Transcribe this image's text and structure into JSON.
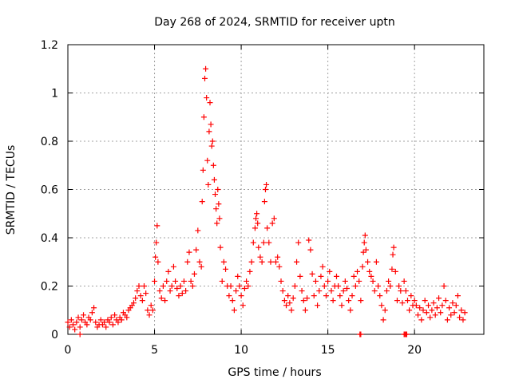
{
  "chart_data": {
    "type": "scatter",
    "title": "Day 268 of 2024, SRMTID for receiver uptn",
    "xlabel": "GPS time / hours",
    "ylabel": "SRMTID / TECUs",
    "xlim": [
      0,
      24
    ],
    "ylim": [
      0,
      1.2
    ],
    "x_ticks": [
      0,
      5,
      10,
      15,
      20
    ],
    "x_tick_labels": [
      "0",
      "5",
      "10",
      "15",
      "20"
    ],
    "y_ticks": [
      0,
      0.2,
      0.4,
      0.6,
      0.8,
      1.0,
      1.2
    ],
    "y_tick_labels": [
      "0",
      "0.2",
      "0.4",
      "0.6",
      "0.8",
      "1",
      "1.2"
    ],
    "grid": true,
    "marker": "plus",
    "series": [
      {
        "name": "SRMTID",
        "color": "#ff0000",
        "points": [
          [
            0.0,
            0.05
          ],
          [
            0.1,
            0.03
          ],
          [
            0.2,
            0.06
          ],
          [
            0.3,
            0.04
          ],
          [
            0.4,
            0.02
          ],
          [
            0.5,
            0.05
          ],
          [
            0.6,
            0.07
          ],
          [
            0.7,
            0.03
          ],
          [
            0.8,
            0.06
          ],
          [
            0.9,
            0.08
          ],
          [
            1.0,
            0.05
          ],
          [
            1.1,
            0.04
          ],
          [
            1.2,
            0.07
          ],
          [
            1.3,
            0.06
          ],
          [
            1.4,
            0.09
          ],
          [
            1.5,
            0.11
          ],
          [
            1.6,
            0.05
          ],
          [
            1.7,
            0.03
          ],
          [
            1.8,
            0.04
          ],
          [
            1.9,
            0.06
          ],
          [
            2.0,
            0.04
          ],
          [
            2.1,
            0.05
          ],
          [
            2.2,
            0.03
          ],
          [
            2.3,
            0.06
          ],
          [
            2.4,
            0.05
          ],
          [
            2.5,
            0.07
          ],
          [
            2.6,
            0.04
          ],
          [
            2.7,
            0.08
          ],
          [
            2.8,
            0.06
          ],
          [
            2.9,
            0.05
          ],
          [
            3.0,
            0.07
          ],
          [
            3.1,
            0.06
          ],
          [
            3.2,
            0.09
          ],
          [
            3.3,
            0.08
          ],
          [
            3.4,
            0.07
          ],
          [
            3.5,
            0.1
          ],
          [
            3.6,
            0.11
          ],
          [
            3.7,
            0.12
          ],
          [
            3.8,
            0.13
          ],
          [
            3.9,
            0.15
          ],
          [
            4.0,
            0.18
          ],
          [
            4.1,
            0.2
          ],
          [
            4.2,
            0.16
          ],
          [
            4.3,
            0.14
          ],
          [
            4.4,
            0.2
          ],
          [
            4.5,
            0.17
          ],
          [
            4.6,
            0.1
          ],
          [
            4.7,
            0.08
          ],
          [
            4.8,
            0.12
          ],
          [
            4.9,
            0.1
          ],
          [
            5.0,
            0.22
          ],
          [
            5.05,
            0.32
          ],
          [
            5.1,
            0.38
          ],
          [
            5.15,
            0.45
          ],
          [
            5.2,
            0.3
          ],
          [
            5.3,
            0.18
          ],
          [
            5.4,
            0.15
          ],
          [
            5.5,
            0.2
          ],
          [
            5.6,
            0.14
          ],
          [
            5.7,
            0.22
          ],
          [
            5.8,
            0.26
          ],
          [
            5.9,
            0.18
          ],
          [
            6.0,
            0.2
          ],
          [
            6.1,
            0.28
          ],
          [
            6.2,
            0.22
          ],
          [
            6.3,
            0.19
          ],
          [
            6.4,
            0.16
          ],
          [
            6.5,
            0.2
          ],
          [
            6.6,
            0.17
          ],
          [
            6.7,
            0.22
          ],
          [
            6.8,
            0.18
          ],
          [
            6.9,
            0.3
          ],
          [
            7.0,
            0.34
          ],
          [
            7.1,
            0.22
          ],
          [
            7.2,
            0.2
          ],
          [
            7.3,
            0.25
          ],
          [
            7.4,
            0.35
          ],
          [
            7.5,
            0.43
          ],
          [
            7.6,
            0.3
          ],
          [
            7.7,
            0.28
          ],
          [
            7.75,
            0.55
          ],
          [
            7.8,
            0.68
          ],
          [
            7.85,
            0.9
          ],
          [
            7.9,
            1.06
          ],
          [
            7.95,
            1.1
          ],
          [
            8.0,
            0.98
          ],
          [
            8.05,
            0.72
          ],
          [
            8.1,
            0.62
          ],
          [
            8.15,
            0.84
          ],
          [
            8.2,
            0.96
          ],
          [
            8.25,
            0.87
          ],
          [
            8.3,
            0.78
          ],
          [
            8.35,
            0.8
          ],
          [
            8.4,
            0.7
          ],
          [
            8.45,
            0.64
          ],
          [
            8.5,
            0.58
          ],
          [
            8.55,
            0.52
          ],
          [
            8.6,
            0.46
          ],
          [
            8.65,
            0.6
          ],
          [
            8.7,
            0.54
          ],
          [
            8.75,
            0.48
          ],
          [
            8.8,
            0.36
          ],
          [
            8.9,
            0.22
          ],
          [
            9.0,
            0.3
          ],
          [
            9.1,
            0.27
          ],
          [
            9.2,
            0.2
          ],
          [
            9.3,
            0.16
          ],
          [
            9.4,
            0.2
          ],
          [
            9.5,
            0.14
          ],
          [
            9.6,
            0.1
          ],
          [
            9.7,
            0.18
          ],
          [
            9.8,
            0.24
          ],
          [
            9.9,
            0.2
          ],
          [
            10.0,
            0.16
          ],
          [
            10.1,
            0.12
          ],
          [
            10.2,
            0.19
          ],
          [
            10.3,
            0.22
          ],
          [
            10.4,
            0.2
          ],
          [
            10.5,
            0.26
          ],
          [
            10.6,
            0.3
          ],
          [
            10.7,
            0.38
          ],
          [
            10.8,
            0.44
          ],
          [
            10.85,
            0.48
          ],
          [
            10.9,
            0.5
          ],
          [
            10.95,
            0.46
          ],
          [
            11.0,
            0.36
          ],
          [
            11.1,
            0.32
          ],
          [
            11.2,
            0.3
          ],
          [
            11.3,
            0.38
          ],
          [
            11.35,
            0.55
          ],
          [
            11.4,
            0.6
          ],
          [
            11.45,
            0.62
          ],
          [
            11.5,
            0.44
          ],
          [
            11.6,
            0.38
          ],
          [
            11.7,
            0.3
          ],
          [
            11.8,
            0.46
          ],
          [
            11.9,
            0.48
          ],
          [
            12.0,
            0.3
          ],
          [
            12.1,
            0.32
          ],
          [
            12.2,
            0.28
          ],
          [
            12.3,
            0.22
          ],
          [
            12.4,
            0.18
          ],
          [
            12.5,
            0.14
          ],
          [
            12.6,
            0.12
          ],
          [
            12.7,
            0.16
          ],
          [
            12.8,
            0.13
          ],
          [
            12.9,
            0.1
          ],
          [
            13.0,
            0.15
          ],
          [
            13.1,
            0.2
          ],
          [
            13.2,
            0.3
          ],
          [
            13.3,
            0.38
          ],
          [
            13.4,
            0.24
          ],
          [
            13.5,
            0.18
          ],
          [
            13.6,
            0.14
          ],
          [
            13.7,
            0.1
          ],
          [
            13.8,
            0.15
          ],
          [
            13.9,
            0.39
          ],
          [
            14.0,
            0.35
          ],
          [
            14.1,
            0.25
          ],
          [
            14.2,
            0.16
          ],
          [
            14.3,
            0.22
          ],
          [
            14.4,
            0.12
          ],
          [
            14.5,
            0.18
          ],
          [
            14.6,
            0.24
          ],
          [
            14.7,
            0.28
          ],
          [
            14.8,
            0.2
          ],
          [
            14.9,
            0.16
          ],
          [
            15.0,
            0.22
          ],
          [
            15.1,
            0.26
          ],
          [
            15.2,
            0.18
          ],
          [
            15.3,
            0.14
          ],
          [
            15.4,
            0.2
          ],
          [
            15.5,
            0.24
          ],
          [
            15.6,
            0.2
          ],
          [
            15.7,
            0.16
          ],
          [
            15.8,
            0.12
          ],
          [
            15.9,
            0.18
          ],
          [
            16.0,
            0.22
          ],
          [
            16.1,
            0.19
          ],
          [
            16.2,
            0.14
          ],
          [
            16.3,
            0.1
          ],
          [
            16.4,
            0.16
          ],
          [
            16.5,
            0.24
          ],
          [
            16.6,
            0.2
          ],
          [
            16.7,
            0.26
          ],
          [
            16.8,
            0.22
          ],
          [
            16.9,
            0.14
          ],
          [
            17.0,
            0.28
          ],
          [
            17.05,
            0.34
          ],
          [
            17.1,
            0.38
          ],
          [
            17.15,
            0.41
          ],
          [
            17.2,
            0.35
          ],
          [
            17.3,
            0.3
          ],
          [
            17.4,
            0.26
          ],
          [
            17.5,
            0.24
          ],
          [
            17.6,
            0.22
          ],
          [
            17.7,
            0.18
          ],
          [
            17.8,
            0.3
          ],
          [
            17.9,
            0.2
          ],
          [
            18.0,
            0.16
          ],
          [
            18.1,
            0.12
          ],
          [
            18.2,
            0.06
          ],
          [
            18.3,
            0.1
          ],
          [
            18.4,
            0.18
          ],
          [
            18.5,
            0.22
          ],
          [
            18.6,
            0.2
          ],
          [
            18.7,
            0.27
          ],
          [
            18.75,
            0.33
          ],
          [
            18.8,
            0.36
          ],
          [
            18.9,
            0.26
          ],
          [
            19.0,
            0.14
          ],
          [
            19.1,
            0.2
          ],
          [
            19.2,
            0.18
          ],
          [
            19.3,
            0.13
          ],
          [
            19.4,
            0.22
          ],
          [
            19.5,
            0.18
          ],
          [
            19.6,
            0.14
          ],
          [
            19.7,
            0.1
          ],
          [
            19.8,
            0.16
          ],
          [
            19.9,
            0.12
          ],
          [
            20.0,
            0.14
          ],
          [
            20.1,
            0.12
          ],
          [
            20.2,
            0.08
          ],
          [
            20.3,
            0.11
          ],
          [
            20.4,
            0.06
          ],
          [
            20.5,
            0.1
          ],
          [
            20.6,
            0.14
          ],
          [
            20.7,
            0.09
          ],
          [
            20.8,
            0.12
          ],
          [
            20.9,
            0.07
          ],
          [
            21.0,
            0.1
          ],
          [
            21.1,
            0.13
          ],
          [
            21.2,
            0.08
          ],
          [
            21.3,
            0.11
          ],
          [
            21.4,
            0.15
          ],
          [
            21.5,
            0.09
          ],
          [
            21.6,
            0.12
          ],
          [
            21.7,
            0.2
          ],
          [
            21.8,
            0.14
          ],
          [
            21.9,
            0.06
          ],
          [
            22.0,
            0.11
          ],
          [
            22.1,
            0.08
          ],
          [
            22.2,
            0.13
          ],
          [
            22.3,
            0.09
          ],
          [
            22.4,
            0.12
          ],
          [
            22.5,
            0.16
          ],
          [
            22.6,
            0.07
          ],
          [
            22.7,
            0.1
          ],
          [
            22.8,
            0.06
          ],
          [
            22.9,
            0.09
          ],
          [
            0.7,
            0.0
          ],
          [
            16.85,
            0.0
          ],
          [
            16.9,
            0.0
          ],
          [
            19.4,
            0.0
          ],
          [
            19.45,
            0.0
          ],
          [
            19.5,
            0.0
          ],
          [
            19.55,
            0.0
          ]
        ]
      }
    ]
  }
}
